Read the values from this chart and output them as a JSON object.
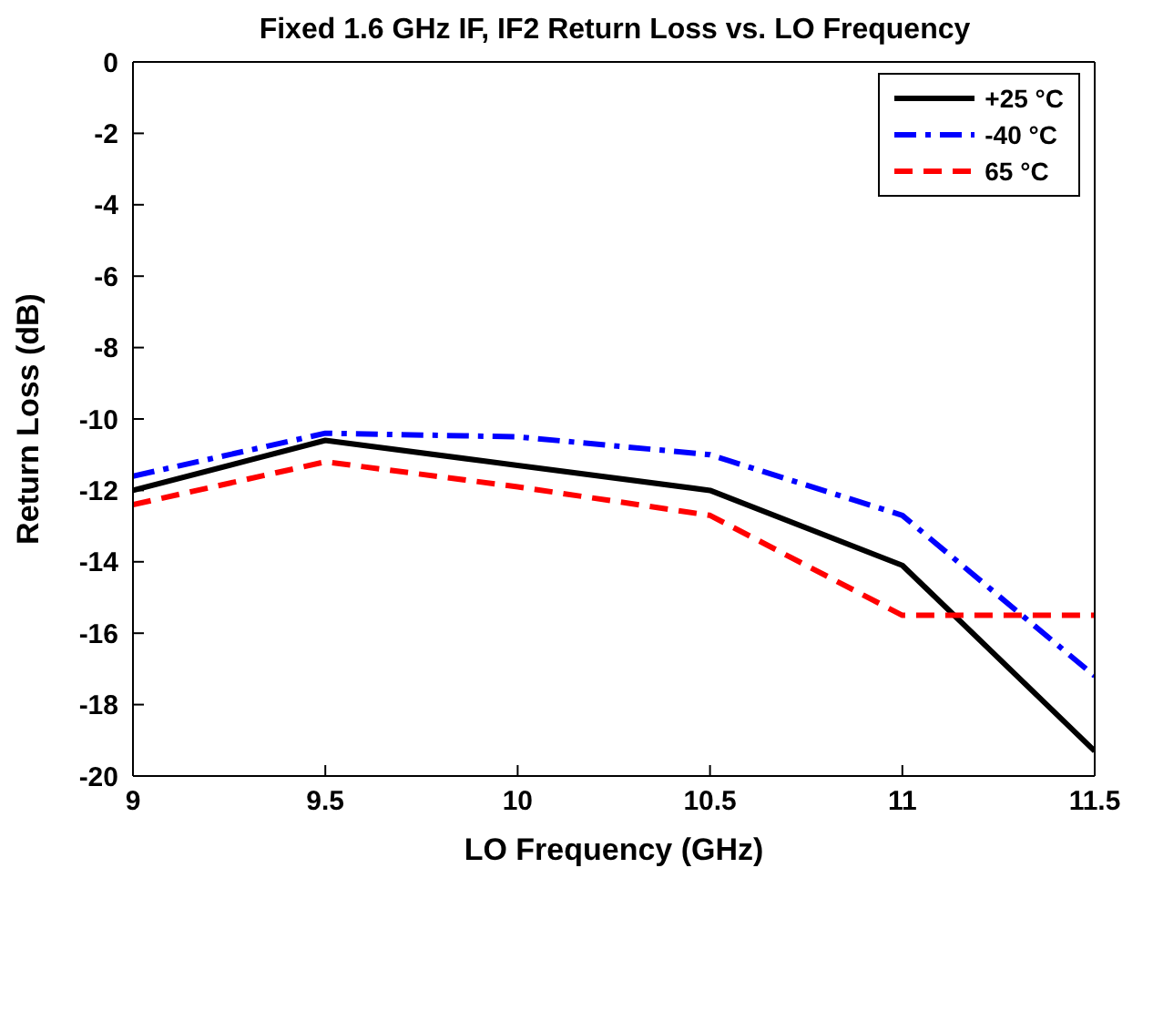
{
  "chart_data": {
    "type": "line",
    "title": "Fixed 1.6 GHz IF, IF2 Return Loss vs. LO Frequency",
    "xlabel": "LO Frequency (GHz)",
    "ylabel": "Return Loss (dB)",
    "x": [
      9,
      9.5,
      10,
      10.5,
      11,
      11.5
    ],
    "series": [
      {
        "name": "+25 °C",
        "color": "#000000",
        "line_style": "solid",
        "values": [
          -12.0,
          -10.6,
          -11.3,
          -12.0,
          -14.1,
          -19.3
        ]
      },
      {
        "name": "-40 °C",
        "color": "#0000ff",
        "line_style": "dashdot",
        "values": [
          -11.6,
          -10.4,
          -10.5,
          -11.0,
          -12.7,
          -17.2
        ]
      },
      {
        "name": "65 °C",
        "color": "#ff0000",
        "line_style": "dashed",
        "values": [
          -12.4,
          -11.2,
          -11.9,
          -12.7,
          -15.5,
          -15.5
        ]
      }
    ],
    "xlim": [
      9,
      11.5
    ],
    "xticks": [
      9,
      9.5,
      10,
      10.5,
      11,
      11.5
    ],
    "ylim": [
      -20,
      0
    ],
    "yticks": [
      -20,
      -18,
      -16,
      -14,
      -12,
      -10,
      -8,
      -6,
      -4,
      -2,
      0
    ],
    "grid": false,
    "legend": "top right",
    "marker": "none"
  }
}
